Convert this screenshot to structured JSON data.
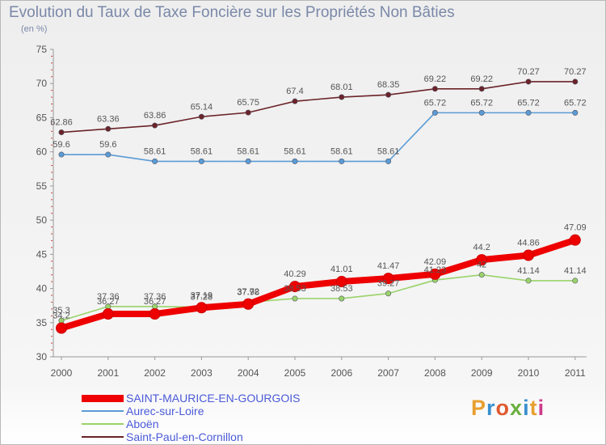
{
  "header": {
    "title": "Evolution du Taux de Taxe Foncière sur les Propriétés Non Bâties",
    "unit": "(en %)"
  },
  "logo": {
    "text": "Proxiti",
    "colors": [
      "#e8a030",
      "#3a8fd0",
      "#e05a30",
      "#6ab040",
      "#3a8fd0",
      "#e8a030",
      "#d03a8a"
    ]
  },
  "chart_data": {
    "type": "line",
    "title": "Evolution du Taux de Taxe Foncière sur les Propriétés Non Bâties",
    "ylabel": "(en %)",
    "xlabel": "",
    "ylim": [
      30,
      75
    ],
    "yticks": [
      30,
      35,
      40,
      45,
      50,
      55,
      60,
      65,
      70,
      75
    ],
    "categories": [
      "2000",
      "2001",
      "2002",
      "2003",
      "2004",
      "2005",
      "2006",
      "2007",
      "2008",
      "2009",
      "2010",
      "2011"
    ],
    "grid": false,
    "legend_position": "bottom-left",
    "series": [
      {
        "name": "SAINT-MAURICE-EN-GOURGOIS",
        "color": "#ee0000",
        "highlight": true,
        "values": [
          34.2,
          36.27,
          36.27,
          37.19,
          37.72,
          40.29,
          41.01,
          41.47,
          42.09,
          44.2,
          44.86,
          47.09
        ],
        "labels": [
          "34.2",
          "36.27",
          "36.27",
          "37.19",
          "37.72",
          "40.29",
          "41.01",
          "41.47",
          "42.09",
          "44.2",
          "44.86",
          "47.09"
        ]
      },
      {
        "name": "Aurec-sur-Loire",
        "color": "#5b9bd5",
        "highlight": false,
        "values": [
          59.6,
          59.6,
          58.61,
          58.61,
          58.61,
          58.61,
          58.61,
          58.61,
          65.72,
          65.72,
          65.72,
          65.72
        ],
        "labels": [
          "59.6",
          "59.6",
          "58.61",
          "58.61",
          "58.61",
          "58.61",
          "58.61",
          "58.61",
          "65.72",
          "65.72",
          "65.72",
          "65.72"
        ]
      },
      {
        "name": "Aboën",
        "color": "#9ad36a",
        "highlight": false,
        "values": [
          35.3,
          37.36,
          37.36,
          37.28,
          37.98,
          38.53,
          38.53,
          39.27,
          41.23,
          42,
          41.14,
          41.14
        ],
        "labels": [
          "35.3",
          "37.36",
          "37.36",
          "37.28",
          "37.98",
          "38.53",
          "38.53",
          "39.27",
          "41.23",
          "42",
          "41.14",
          "41.14"
        ]
      },
      {
        "name": "Saint-Paul-en-Cornillon",
        "color": "#6b2328",
        "highlight": false,
        "values": [
          62.86,
          63.36,
          63.86,
          65.14,
          65.75,
          67.4,
          68.01,
          68.35,
          69.22,
          69.22,
          70.27,
          70.27
        ],
        "labels": [
          "62.86",
          "63.36",
          "63.86",
          "65.14",
          "65.75",
          "67.4",
          "68.01",
          "68.35",
          "69.22",
          "69.22",
          "70.27",
          "70.27"
        ]
      }
    ]
  }
}
